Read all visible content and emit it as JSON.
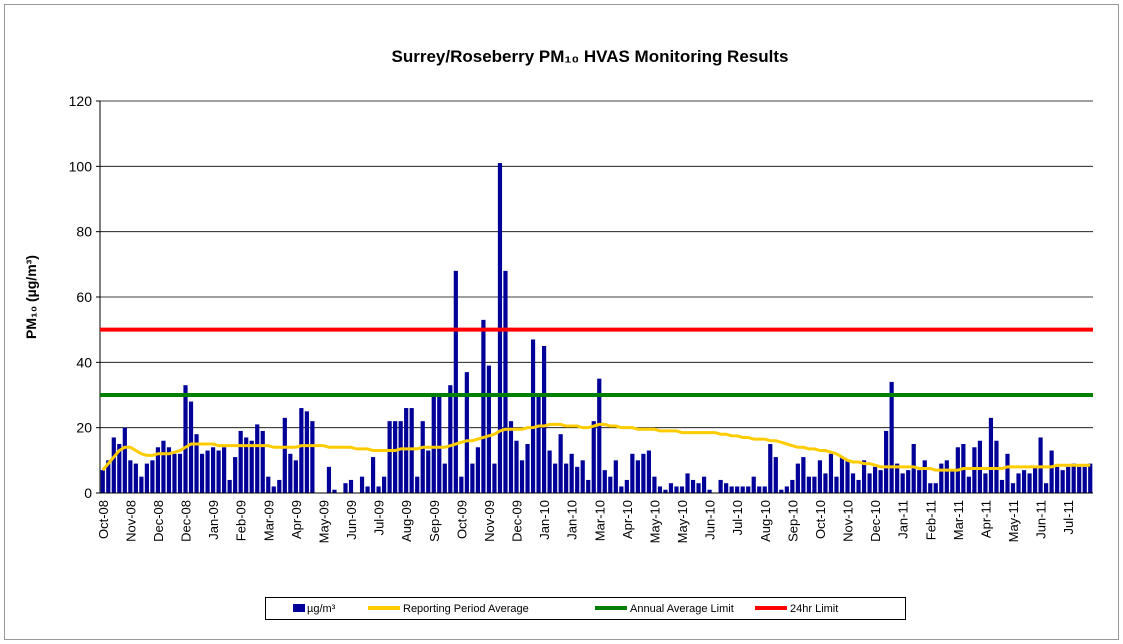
{
  "chart_data": {
    "type": "bar",
    "title": "Surrey/Roseberry PM₁₀ HVAS Monitoring Results",
    "y_label": "PM₁₀ (µg/m³)",
    "ylim": [
      0,
      120
    ],
    "yticks": [
      0,
      20,
      40,
      60,
      80,
      100,
      120
    ],
    "grid": true,
    "legend": "bottom",
    "categories": [
      "Oct-08",
      null,
      null,
      null,
      null,
      "Nov-08",
      null,
      null,
      null,
      null,
      "Dec-08",
      null,
      null,
      null,
      null,
      "Dec-08",
      null,
      null,
      null,
      null,
      "Jan-09",
      null,
      null,
      null,
      null,
      "Feb-09",
      null,
      null,
      null,
      null,
      "Mar-09",
      null,
      null,
      null,
      null,
      "Apr-09",
      null,
      null,
      null,
      null,
      "May-09",
      null,
      null,
      null,
      null,
      "Jun-09",
      null,
      null,
      null,
      null,
      "Jul-09",
      null,
      null,
      null,
      null,
      "Aug-09",
      null,
      null,
      null,
      null,
      "Sep-09",
      null,
      null,
      null,
      null,
      "Oct-09",
      null,
      null,
      null,
      null,
      "Nov-09",
      null,
      null,
      null,
      null,
      "Dec-09",
      null,
      null,
      null,
      null,
      "Jan-10",
      null,
      null,
      null,
      null,
      "Jan-10",
      null,
      null,
      null,
      null,
      "Mar-10",
      null,
      null,
      null,
      null,
      "Apr-10",
      null,
      null,
      null,
      null,
      "May-10",
      null,
      null,
      null,
      null,
      "May-10",
      null,
      null,
      null,
      null,
      "Jun-10",
      null,
      null,
      null,
      null,
      "Jul-10",
      null,
      null,
      null,
      null,
      "Aug-10",
      null,
      null,
      null,
      null,
      "Sep-10",
      null,
      null,
      null,
      null,
      "Oct-10",
      null,
      null,
      null,
      null,
      "Nov-10",
      null,
      null,
      null,
      null,
      "Dec-10",
      null,
      null,
      null,
      null,
      "Jan-11",
      null,
      null,
      null,
      null,
      "Feb-11",
      null,
      null,
      null,
      null,
      "Mar-11",
      null,
      null,
      null,
      null,
      "Apr-11",
      null,
      null,
      null,
      null,
      "May-11",
      null,
      null,
      null,
      null,
      "Jun-11",
      null,
      null,
      null,
      null,
      "Jul-11",
      null,
      null,
      null,
      null
    ],
    "series": [
      {
        "name": "µg/m³",
        "type": "bar",
        "color": "#000099",
        "values": [
          7,
          10,
          17,
          15,
          20,
          10,
          9,
          5,
          9,
          10,
          14,
          16,
          14,
          12,
          12,
          33,
          28,
          18,
          12,
          13,
          14,
          13,
          14,
          4,
          11,
          19,
          17,
          16,
          21,
          19,
          5,
          2,
          4,
          23,
          12,
          10,
          26,
          25,
          22,
          0,
          0,
          8,
          1,
          0,
          3,
          4,
          0,
          5,
          2,
          11,
          2,
          5,
          22,
          22,
          22,
          26,
          26,
          5,
          22,
          13,
          30,
          30,
          9,
          33,
          68,
          5,
          37,
          9,
          14,
          53,
          39,
          9,
          101,
          68,
          22,
          16,
          10,
          15,
          47,
          30,
          45,
          13,
          9,
          18,
          9,
          12,
          8,
          10,
          4,
          22,
          35,
          7,
          5,
          10,
          2,
          4,
          12,
          10,
          12,
          13,
          5,
          2,
          1,
          3,
          2,
          2,
          6,
          4,
          3,
          5,
          1,
          0,
          4,
          3,
          2,
          2,
          2,
          2,
          5,
          2,
          2,
          15,
          11,
          1,
          2,
          4,
          9,
          11,
          5,
          5,
          10,
          6,
          12,
          5,
          11,
          10,
          6,
          4,
          10,
          6,
          8,
          7,
          19,
          34,
          9,
          6,
          7,
          15,
          7,
          10,
          3,
          3,
          9,
          10,
          7,
          14,
          15,
          5,
          14,
          16,
          6,
          23,
          16,
          4,
          12,
          3,
          6,
          7,
          6,
          8,
          17,
          3,
          13,
          8,
          7,
          8,
          9,
          8,
          8,
          9
        ]
      },
      {
        "name": "Reporting Period Average",
        "type": "line",
        "color": "#ffcc00",
        "values": [
          7,
          9,
          11,
          13,
          14,
          14,
          13,
          12,
          11.5,
          11.5,
          12,
          12,
          12,
          12.5,
          13,
          14,
          15,
          15,
          15,
          15,
          15,
          14.5,
          14.5,
          14.5,
          14.5,
          14.5,
          14.5,
          14.5,
          14.5,
          14.5,
          14.5,
          14,
          14,
          14,
          14,
          14,
          14.5,
          14.5,
          14.5,
          14.5,
          14.5,
          14,
          14,
          14,
          14,
          14,
          13.5,
          13.5,
          13.5,
          13,
          13,
          13,
          13,
          13,
          13.5,
          13.5,
          13.5,
          13.5,
          14,
          14,
          14,
          14,
          14,
          14.5,
          15,
          15.5,
          16,
          16,
          16.5,
          17,
          17.5,
          18,
          19,
          19.5,
          19.5,
          19.5,
          19.5,
          20,
          20,
          20.5,
          20.5,
          21,
          21,
          21,
          20.5,
          20.5,
          20.5,
          20,
          20,
          20.5,
          21,
          21,
          20.5,
          20.5,
          20,
          20,
          20,
          19.5,
          19.5,
          19.5,
          19.5,
          19,
          19,
          19,
          19,
          18.5,
          18.5,
          18.5,
          18.5,
          18.5,
          18.5,
          18.5,
          18,
          18,
          17.5,
          17.5,
          17,
          17,
          16.5,
          16.5,
          16.5,
          16,
          16,
          15.5,
          15,
          14.5,
          14,
          14,
          13.5,
          13.5,
          13,
          13,
          12.5,
          12,
          11,
          10,
          9.5,
          9.5,
          9,
          9,
          8.5,
          8,
          8,
          8,
          8,
          8,
          8,
          8,
          7.5,
          7.5,
          7.5,
          7,
          7,
          7,
          7,
          7,
          7.5,
          7.5,
          7.5,
          7.5,
          7.5,
          7.5,
          7.5,
          7.5,
          8,
          8,
          8,
          8,
          8,
          8,
          8,
          8,
          8,
          8.5,
          8.5,
          8.5,
          8.5,
          8.5,
          8.5,
          8.5
        ]
      }
    ],
    "reference_lines": [
      {
        "name": "Annual Average Limit",
        "value": 30,
        "color": "#008000"
      },
      {
        "name": "24hr Limit",
        "value": 50,
        "color": "#ff0000"
      }
    ]
  }
}
